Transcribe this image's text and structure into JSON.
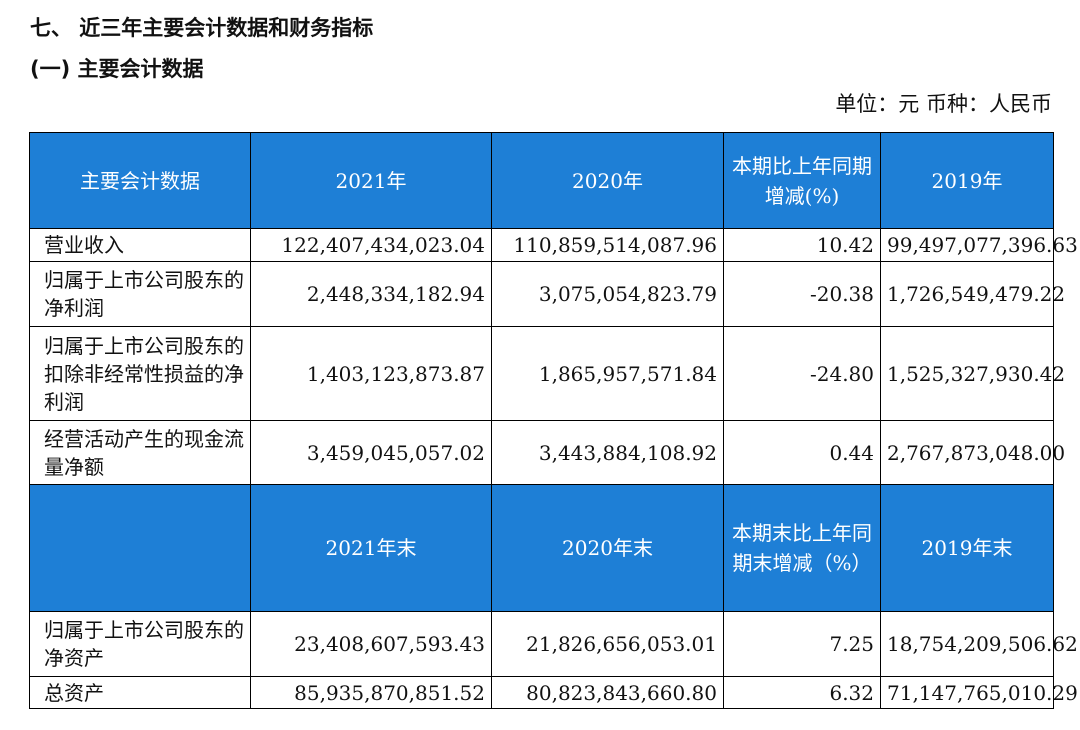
{
  "section_title": "七、 近三年主要会计数据和财务指标",
  "subsection_title": "(一) 主要会计数据",
  "unit_line": "单位：元   币种：人民币",
  "colors": {
    "header_bg": "#1e7fd6",
    "header_text": "#ffffff"
  },
  "table1": {
    "header": {
      "label": "主要会计数据",
      "y2021": "2021年",
      "y2020": "2020年",
      "change": "本期比上年同期增减(%)",
      "y2019": "2019年"
    },
    "rows": [
      {
        "label": "营业收入",
        "v2021": "122,407,434,023.04",
        "v2020": "110,859,514,087.96",
        "change": "10.42",
        "v2019": "99,497,077,396.63"
      },
      {
        "label": "归属于上市公司股东的净利润",
        "v2021": "2,448,334,182.94",
        "v2020": "3,075,054,823.79",
        "change": "-20.38",
        "v2019": "1,726,549,479.22"
      },
      {
        "label": "归属于上市公司股东的扣除非经常性损益的净利润",
        "v2021": "1,403,123,873.87",
        "v2020": "1,865,957,571.84",
        "change": "-24.80",
        "v2019": "1,525,327,930.42"
      },
      {
        "label": "经营活动产生的现金流量净额",
        "v2021": "3,459,045,057.02",
        "v2020": "3,443,884,108.92",
        "change": "0.44",
        "v2019": "2,767,873,048.00"
      }
    ]
  },
  "table2": {
    "header": {
      "label": "",
      "y2021": "2021年末",
      "y2020": "2020年末",
      "change": "本期末比上年同期末增减（%）",
      "y2019": "2019年末"
    },
    "rows": [
      {
        "label": "归属于上市公司股东的净资产",
        "v2021": "23,408,607,593.43",
        "v2020": "21,826,656,053.01",
        "change": "7.25",
        "v2019": "18,754,209,506.62"
      },
      {
        "label": "总资产",
        "v2021": "85,935,870,851.52",
        "v2020": "80,823,843,660.80",
        "change": "6.32",
        "v2019": "71,147,765,010.29"
      }
    ]
  }
}
